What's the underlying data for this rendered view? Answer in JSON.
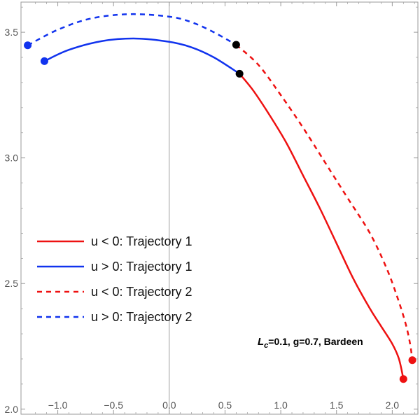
{
  "chart_data": {
    "type": "line",
    "title": "",
    "xlabel": "",
    "ylabel": "",
    "xlim": [
      -1.33,
      2.23
    ],
    "ylim": [
      1.98,
      3.62
    ],
    "x_ticks": [
      -1.0,
      -0.5,
      0.0,
      0.5,
      1.0,
      1.5,
      2.0
    ],
    "x_tick_labels": [
      "−1.0",
      "−0.5",
      "0.0",
      "0.5",
      "1.0",
      "1.5",
      "2.0"
    ],
    "y_ticks": [
      2.0,
      2.5,
      3.0,
      3.5
    ],
    "y_tick_labels": [
      "2.0",
      "2.5",
      "3.0",
      "3.5"
    ],
    "grid": false,
    "legend_position": "left-middle",
    "annotation": {
      "main": "L",
      "sub": "c",
      "rest": "=0.1, g=0.7, Bardeen"
    },
    "series": [
      {
        "name": "u < 0: Trajectory 1",
        "color": "#ee1111",
        "dash": "solid",
        "points": [
          [
            0.63,
            3.335
          ],
          [
            0.75,
            3.27
          ],
          [
            0.9,
            3.17
          ],
          [
            1.05,
            3.06
          ],
          [
            1.2,
            2.93
          ],
          [
            1.35,
            2.8
          ],
          [
            1.5,
            2.66
          ],
          [
            1.65,
            2.52
          ],
          [
            1.8,
            2.4
          ],
          [
            1.9,
            2.33
          ],
          [
            2.0,
            2.26
          ],
          [
            2.06,
            2.2
          ],
          [
            2.1,
            2.12
          ]
        ]
      },
      {
        "name": "u > 0: Trajectory 1",
        "color": "#1133ee",
        "dash": "solid",
        "points": [
          [
            -1.12,
            3.385
          ],
          [
            -0.9,
            3.43
          ],
          [
            -0.6,
            3.465
          ],
          [
            -0.3,
            3.475
          ],
          [
            0.0,
            3.462
          ],
          [
            0.2,
            3.44
          ],
          [
            0.4,
            3.4
          ],
          [
            0.63,
            3.335
          ]
        ]
      },
      {
        "name": "u < 0: Trajectory 2",
        "color": "#ee1111",
        "dash": "dashed",
        "points": [
          [
            0.6,
            3.45
          ],
          [
            0.8,
            3.37
          ],
          [
            1.0,
            3.25
          ],
          [
            1.2,
            3.12
          ],
          [
            1.4,
            2.98
          ],
          [
            1.6,
            2.84
          ],
          [
            1.8,
            2.7
          ],
          [
            1.95,
            2.56
          ],
          [
            2.05,
            2.44
          ],
          [
            2.12,
            2.34
          ],
          [
            2.16,
            2.26
          ],
          [
            2.18,
            2.195
          ]
        ]
      },
      {
        "name": "u > 0: Trajectory 2",
        "color": "#1133ee",
        "dash": "dashed",
        "points": [
          [
            -1.27,
            3.448
          ],
          [
            -1.0,
            3.51
          ],
          [
            -0.7,
            3.555
          ],
          [
            -0.35,
            3.572
          ],
          [
            0.0,
            3.562
          ],
          [
            0.2,
            3.54
          ],
          [
            0.4,
            3.5
          ],
          [
            0.6,
            3.45
          ]
        ]
      }
    ],
    "markers": [
      {
        "x": -1.12,
        "y": 3.385,
        "color": "#1133ee"
      },
      {
        "x": -1.27,
        "y": 3.448,
        "color": "#1133ee"
      },
      {
        "x": 0.63,
        "y": 3.335,
        "color": "#000000"
      },
      {
        "x": 0.6,
        "y": 3.45,
        "color": "#000000"
      },
      {
        "x": 2.1,
        "y": 2.12,
        "color": "#ee1111"
      },
      {
        "x": 2.18,
        "y": 2.195,
        "color": "#ee1111"
      }
    ]
  }
}
